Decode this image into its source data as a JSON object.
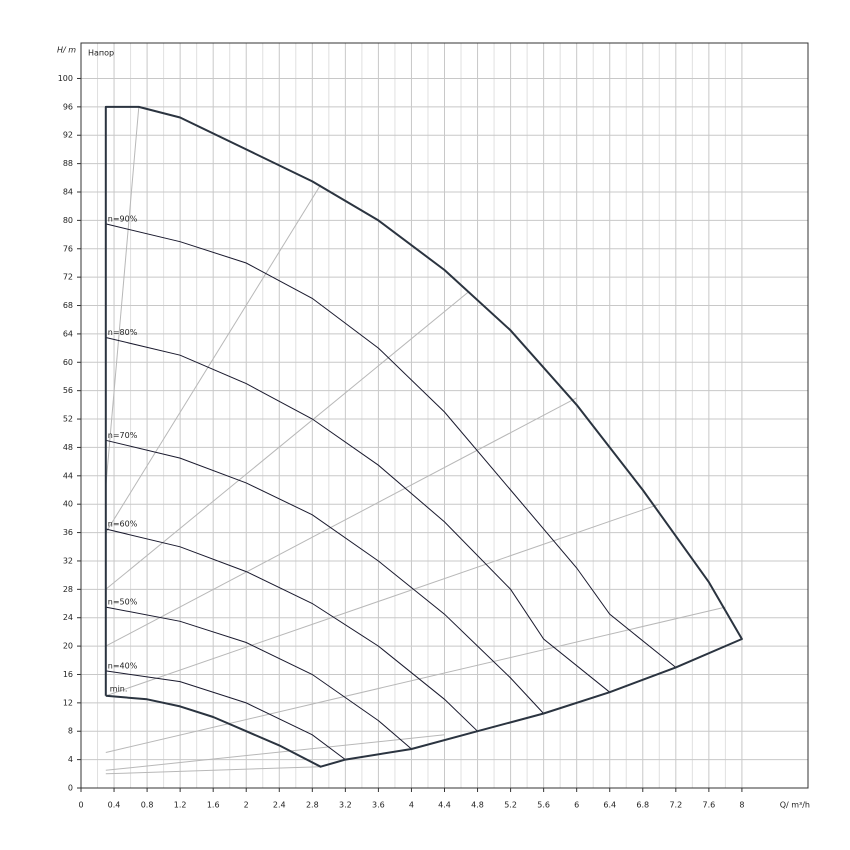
{
  "chart_data": {
    "type": "line",
    "title": "Напор",
    "y_label": "H/ m",
    "x_label": "Q/ m³/h",
    "xlim": [
      0,
      8.8
    ],
    "ylim": [
      0,
      105
    ],
    "xticks": [
      0,
      0.4,
      0.8,
      1.2,
      1.6,
      2,
      2.4,
      2.8,
      3.2,
      3.6,
      4,
      4.4,
      4.8,
      5.2,
      5.6,
      6,
      6.4,
      6.8,
      7.2,
      7.6,
      8
    ],
    "yticks": [
      0,
      4,
      8,
      12,
      16,
      20,
      24,
      28,
      32,
      36,
      40,
      44,
      48,
      52,
      56,
      60,
      64,
      68,
      72,
      76,
      80,
      84,
      88,
      92,
      96,
      100
    ],
    "grid": true,
    "envelope": {
      "color": "#2b3440",
      "x": [
        0.3,
        0.3,
        0.7,
        1.2,
        2,
        2.8,
        3.6,
        4.4,
        5.2,
        6,
        6.8,
        7.6,
        8,
        7.2,
        6.4,
        5.6,
        4.8,
        4,
        3.2,
        2.9,
        2.4,
        2,
        1.6,
        1.2,
        0.8,
        0.3
      ],
      "y": [
        13,
        96,
        96,
        94.5,
        90,
        85.5,
        80,
        73,
        64.5,
        54,
        42,
        29,
        21,
        17,
        13.5,
        10.5,
        8,
        5.5,
        4,
        3,
        6,
        8,
        10,
        11.5,
        12.5,
        13
      ]
    },
    "min_label": "min.",
    "series": [
      {
        "name": "n=90%",
        "color": "#1a1a2e",
        "x": [
          0.3,
          1.2,
          2,
          2.8,
          3.6,
          4.4,
          5.2,
          6,
          6.4,
          7.2
        ],
        "values": [
          79.5,
          77,
          74,
          69,
          62,
          53,
          42,
          31,
          24.5,
          17
        ]
      },
      {
        "name": "n=80%",
        "color": "#1a1a2e",
        "x": [
          0.3,
          1.2,
          2,
          2.8,
          3.6,
          4.4,
          5.2,
          5.6,
          6.4
        ],
        "values": [
          63.5,
          61,
          57,
          52,
          45.5,
          37.5,
          28,
          21,
          13.5
        ]
      },
      {
        "name": "n=70%",
        "color": "#1a1a2e",
        "x": [
          0.3,
          1.2,
          2,
          2.8,
          3.6,
          4.4,
          5.2,
          5.6
        ],
        "values": [
          49,
          46.5,
          43,
          38.5,
          32,
          24.5,
          15.5,
          10.5
        ]
      },
      {
        "name": "n=60%",
        "color": "#1a1a2e",
        "x": [
          0.3,
          1.2,
          2,
          2.8,
          3.6,
          4.4,
          4.8
        ],
        "values": [
          36.5,
          34,
          30.5,
          26,
          20,
          12.5,
          8
        ]
      },
      {
        "name": "n=50%",
        "color": "#1a1a2e",
        "x": [
          0.3,
          1.2,
          2,
          2.8,
          3.6,
          4
        ],
        "values": [
          25.5,
          23.5,
          20.5,
          16,
          9.5,
          5.5
        ]
      },
      {
        "name": "n=40%",
        "color": "#1a1a2e",
        "x": [
          0.3,
          1.2,
          2,
          2.8,
          3.2
        ],
        "values": [
          16.5,
          15,
          12,
          7.5,
          4
        ]
      }
    ],
    "reference_lines": {
      "color": "#b8b8b8",
      "lines": [
        {
          "x": [
            0.3,
            0.7
          ],
          "y": [
            42.5,
            96
          ]
        },
        {
          "x": [
            0.3,
            2.9
          ],
          "y": [
            36,
            85
          ]
        },
        {
          "x": [
            0.3,
            4.7
          ],
          "y": [
            28,
            70
          ]
        },
        {
          "x": [
            0.3,
            6
          ],
          "y": [
            20,
            55
          ]
        },
        {
          "x": [
            0.3,
            7
          ],
          "y": [
            13,
            40
          ]
        },
        {
          "x": [
            0.3,
            7.8
          ],
          "y": [
            5,
            25.5
          ]
        },
        {
          "x": [
            0.3,
            4.4
          ],
          "y": [
            2.5,
            7.5
          ]
        },
        {
          "x": [
            0.3,
            2.9
          ],
          "y": [
            2,
            3
          ]
        }
      ]
    }
  }
}
